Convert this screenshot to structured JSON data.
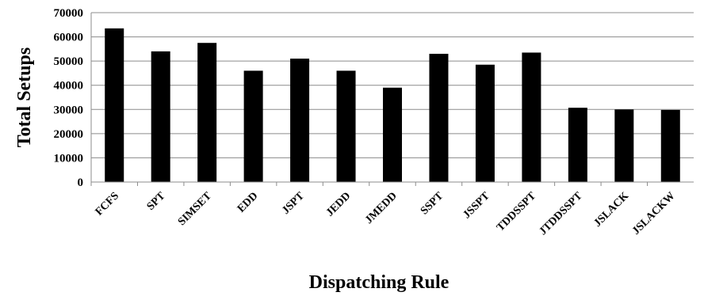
{
  "chart_data": {
    "type": "bar",
    "title": "",
    "xlabel": "Dispatching Rule",
    "ylabel": "Total  Setups",
    "ylim": [
      0,
      70000
    ],
    "yticks": [
      0,
      10000,
      20000,
      30000,
      40000,
      50000,
      60000,
      70000
    ],
    "grid": true,
    "bar_color": "#000000",
    "grid_color": "#8c8c8c",
    "categories": [
      "FCFS",
      "SPT",
      "SIMSET",
      "EDD",
      "JSPT",
      "JEDD",
      "JMEDD",
      "SSPT",
      "JSSPT",
      "TDDSSPT",
      "JTDDSSPT",
      "JSLACK",
      "JSLACKW"
    ],
    "values": [
      63500,
      54000,
      57500,
      46000,
      51000,
      46000,
      39000,
      53000,
      48500,
      53500,
      30700,
      30000,
      29800
    ]
  }
}
